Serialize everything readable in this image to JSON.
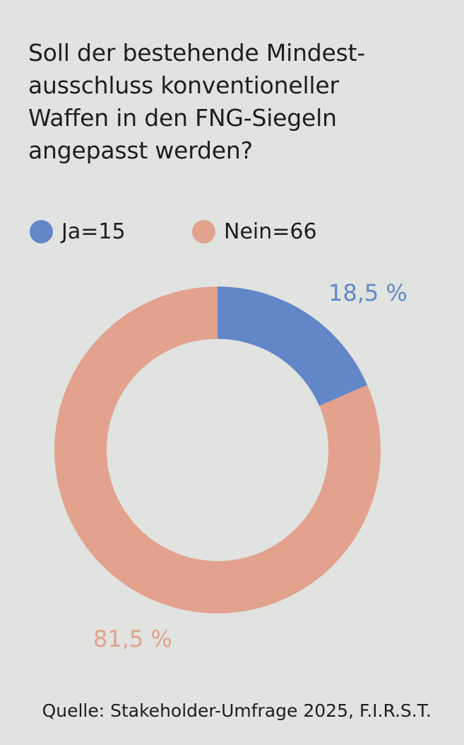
{
  "title_lines": [
    "Soll der bestehende Mindest-",
    "ausschluss konventioneller",
    "Waffen in den FNG-Siegeln",
    "angepasst werden?"
  ],
  "legend": [
    {
      "label": "Ja=15",
      "color": "#6287c8"
    },
    {
      "label": "Nein=66",
      "color": "#e2a28e"
    }
  ],
  "chart_data": {
    "type": "pie",
    "donut": true,
    "title": "Soll der bestehende Mindestausschluss konventioneller Waffen in den FNG-Siegeln angepasst werden?",
    "categories": [
      "Ja",
      "Nein"
    ],
    "counts": [
      15,
      66
    ],
    "values": [
      18.5,
      81.5
    ],
    "value_labels": [
      "18,5 %",
      "81,5 %"
    ],
    "colors": [
      "#6287c8",
      "#e2a28e"
    ],
    "legend": [
      "Ja=15",
      "Nein=66"
    ]
  },
  "source": "Quelle: Stakeholder-Umfrage 2025, F.I.R.S.T."
}
